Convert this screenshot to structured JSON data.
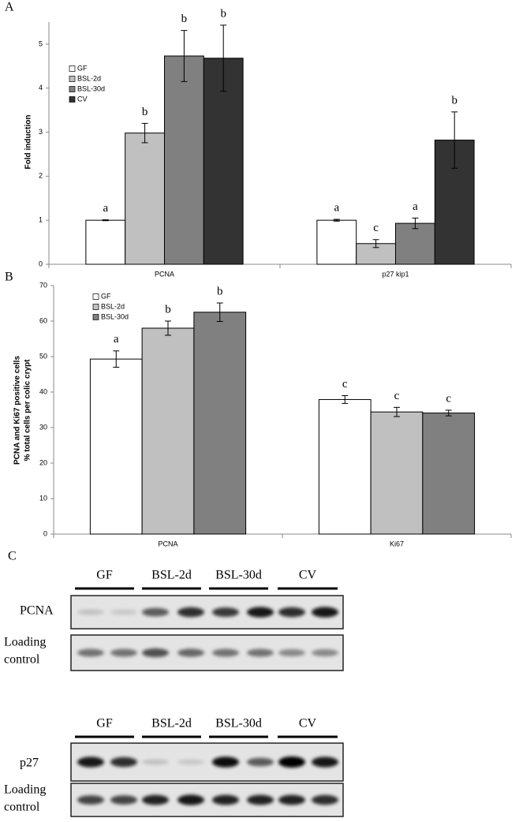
{
  "chart_data": [
    {
      "type": "bar",
      "panel_label": "A",
      "ylabel": [
        "Fold induction"
      ],
      "categories": [
        "PCNA",
        "p27 kip1"
      ],
      "series": [
        {
          "name": "GF",
          "color": "#ffffff",
          "values": [
            1.0,
            1.0
          ],
          "errors": [
            0.01,
            0.02
          ],
          "letters": [
            "a",
            "a"
          ]
        },
        {
          "name": "BSL-2d",
          "color": "#c0c0c0",
          "values": [
            2.98,
            0.47
          ],
          "errors": [
            0.22,
            0.09
          ],
          "letters": [
            "b",
            "c"
          ]
        },
        {
          "name": "BSL-30d",
          "color": "#808080",
          "values": [
            4.73,
            0.93
          ],
          "errors": [
            0.58,
            0.12
          ],
          "letters": [
            "b",
            "a"
          ]
        },
        {
          "name": "CV",
          "color": "#333333",
          "values": [
            4.68,
            2.82
          ],
          "errors": [
            0.75,
            0.64
          ],
          "letters": [
            "b",
            "b"
          ]
        }
      ],
      "ylim": [
        0,
        5.5
      ],
      "yticks": [
        0,
        1,
        2,
        3,
        4,
        5
      ],
      "legend": "upper left"
    },
    {
      "type": "bar",
      "panel_label": "B",
      "ylabel": [
        "PCNA and Ki67 positive cells",
        "% total cells per colic crypt"
      ],
      "categories": [
        "PCNA",
        "Ki67"
      ],
      "series": [
        {
          "name": "GF",
          "color": "#ffffff",
          "values": [
            49.3,
            37.9
          ],
          "errors": [
            2.3,
            1.1
          ],
          "letters": [
            "a",
            "c"
          ]
        },
        {
          "name": "BSL-2d",
          "color": "#c0c0c0",
          "values": [
            58.0,
            34.4
          ],
          "errors": [
            2.0,
            1.3
          ],
          "letters": [
            "b",
            "c"
          ]
        },
        {
          "name": "BSL-30d",
          "color": "#808080",
          "values": [
            62.5,
            34.1
          ],
          "errors": [
            2.6,
            0.8
          ],
          "letters": [
            "b",
            "c"
          ]
        }
      ],
      "ylim": [
        0,
        70
      ],
      "yticks": [
        0,
        10,
        20,
        30,
        40,
        50,
        60,
        70
      ],
      "legend": "upper left"
    }
  ],
  "panel_c": {
    "label": "C",
    "blots": [
      {
        "lanes": [
          "GF",
          "BSL-2d",
          "BSL-30d",
          "CV"
        ],
        "rows": [
          [
            "PCNA"
          ],
          [
            "Loading",
            "control"
          ]
        ]
      },
      {
        "lanes": [
          "GF",
          "BSL-2d",
          "BSL-30d",
          "CV"
        ],
        "rows": [
          [
            "p27"
          ],
          [
            "Loading",
            "control"
          ]
        ]
      }
    ]
  }
}
